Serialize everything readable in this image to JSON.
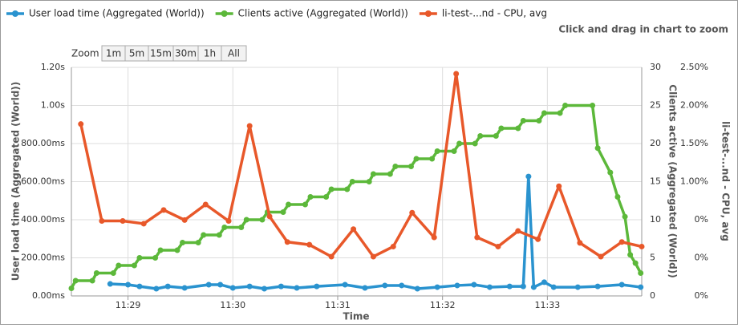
{
  "chart_data": {
    "type": "line",
    "zoom_hint": "Click and drag in chart to zoom",
    "zoom_label": "Zoom",
    "zoom_buttons": [
      "1m",
      "5m",
      "15m",
      "30m",
      "1h",
      "All"
    ],
    "xlabel": "Time",
    "ylabel": "User load time (Aggregated (World))",
    "y2label": "Clients active (Aggregated (World))",
    "y3label": "li-test-...nd - CPU, avg",
    "grid": true,
    "legend": "top",
    "xlim": [
      688.46,
      693.9
    ],
    "xticks": [
      {
        "value": 689,
        "label": "11:29"
      },
      {
        "value": 690,
        "label": "11:30"
      },
      {
        "value": 691,
        "label": "11:31"
      },
      {
        "value": 692,
        "label": "11:32"
      },
      {
        "value": 693,
        "label": "11:33"
      }
    ],
    "ylim": [
      0,
      1200
    ],
    "yticks": [
      {
        "value": 0,
        "label": "0.00ms"
      },
      {
        "value": 200,
        "label": "200.00ms"
      },
      {
        "value": 400,
        "label": "400.00ms"
      },
      {
        "value": 600,
        "label": "600.00ms"
      },
      {
        "value": 800,
        "label": "800.00ms"
      },
      {
        "value": 1000,
        "label": "1.00s"
      },
      {
        "value": 1200,
        "label": "1.20s"
      }
    ],
    "y2lim": [
      0,
      30
    ],
    "y2ticks": [
      0,
      5,
      10,
      15,
      20,
      25,
      30
    ],
    "y3lim": [
      0,
      2.5
    ],
    "y3ticks": [
      {
        "value": 0,
        "label": "0%"
      },
      {
        "value": 0.4167,
        "label": "0%"
      },
      {
        "value": 0.8333,
        "label": "0%"
      },
      {
        "value": 1.25,
        "label": "1.00%"
      },
      {
        "value": 1.6667,
        "label": "1.50%"
      },
      {
        "value": 2.0833,
        "label": "2.00%"
      },
      {
        "value": 2.5,
        "label": "2.50%"
      }
    ],
    "series": [
      {
        "name": "User load time (Aggregated (World))",
        "color": "#2a93cf",
        "axis": "y",
        "x": [
          688.83,
          689.0,
          689.11,
          689.27,
          689.38,
          689.54,
          689.77,
          689.88,
          690.0,
          690.16,
          690.3,
          690.46,
          690.61,
          690.8,
          691.07,
          691.26,
          691.45,
          691.61,
          691.76,
          691.95,
          692.14,
          692.3,
          692.45,
          692.64,
          692.77,
          692.82,
          692.87,
          692.97,
          693.06,
          693.29,
          693.48,
          693.71,
          693.89
        ],
        "values": [
          63,
          59,
          50,
          38,
          50,
          42,
          59,
          59,
          42,
          50,
          38,
          50,
          42,
          50,
          59,
          42,
          55,
          55,
          38,
          46,
          55,
          59,
          46,
          50,
          50,
          627,
          46,
          72,
          46,
          46,
          50,
          59,
          46
        ]
      },
      {
        "name": "Clients active (Aggregated (World))",
        "color": "#5cb83a",
        "axis": "y2",
        "x": [
          688.46,
          688.5,
          688.66,
          688.7,
          688.86,
          688.91,
          689.06,
          689.11,
          689.26,
          689.31,
          689.47,
          689.52,
          689.67,
          689.72,
          689.87,
          689.92,
          690.08,
          690.13,
          690.28,
          690.33,
          690.48,
          690.53,
          690.69,
          690.74,
          690.89,
          690.94,
          691.09,
          691.14,
          691.3,
          691.34,
          691.5,
          691.55,
          691.7,
          691.75,
          691.9,
          691.95,
          692.11,
          692.16,
          692.31,
          692.36,
          692.51,
          692.56,
          692.72,
          692.77,
          692.92,
          692.97,
          693.12,
          693.17,
          693.43,
          693.48,
          693.6,
          693.67,
          693.74,
          693.79,
          693.84,
          693.89
        ],
        "values": [
          1,
          2,
          2,
          3,
          3,
          4,
          4,
          5,
          5,
          6,
          6,
          7,
          7,
          8,
          8,
          9,
          9,
          10,
          10,
          11,
          11,
          12,
          12,
          13,
          13,
          14,
          14,
          15,
          15,
          16,
          16,
          17,
          17,
          18,
          18,
          19,
          19,
          20,
          20,
          21,
          21,
          22,
          22,
          23,
          23,
          24,
          24,
          25,
          25,
          19.4,
          16.2,
          13,
          10.4,
          5.4,
          4.3,
          3
        ]
      },
      {
        "name": "li-test-...nd - CPU, avg",
        "color": "#e8582a",
        "axis": "y3",
        "x": [
          688.55,
          688.75,
          688.95,
          689.15,
          689.34,
          689.54,
          689.74,
          689.96,
          690.16,
          690.35,
          690.52,
          690.73,
          690.94,
          691.15,
          691.34,
          691.53,
          691.71,
          691.92,
          692.13,
          692.33,
          692.53,
          692.72,
          692.91,
          693.11,
          693.31,
          693.51,
          693.71,
          693.9
        ],
        "values": [
          1.88,
          0.82,
          0.82,
          0.79,
          0.94,
          0.83,
          1.0,
          0.82,
          1.86,
          0.87,
          0.59,
          0.56,
          0.43,
          0.73,
          0.43,
          0.54,
          0.91,
          0.64,
          2.43,
          0.64,
          0.54,
          0.71,
          0.62,
          1.2,
          0.58,
          0.43,
          0.59,
          0.54
        ]
      }
    ]
  }
}
